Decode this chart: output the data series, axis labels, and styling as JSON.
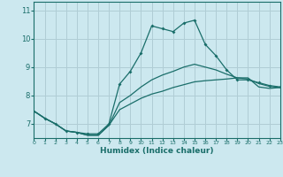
{
  "xlabel": "Humidex (Indice chaleur)",
  "xlim": [
    0,
    23
  ],
  "ylim": [
    6.5,
    11.3
  ],
  "bg_color": "#cce8ef",
  "grid_color": "#b0cdd5",
  "line_color": "#1a6e6a",
  "xticks": [
    0,
    1,
    2,
    3,
    4,
    5,
    6,
    7,
    8,
    9,
    10,
    11,
    12,
    13,
    14,
    15,
    16,
    17,
    18,
    19,
    20,
    21,
    22,
    23
  ],
  "yticks": [
    7,
    8,
    9,
    10,
    11
  ],
  "line_max_x": [
    0,
    1,
    2,
    3,
    4,
    5,
    6,
    7,
    8,
    9,
    10,
    11,
    12,
    13,
    14,
    15,
    16,
    17,
    18,
    19,
    20,
    21,
    22,
    23
  ],
  "line_max_y": [
    7.45,
    7.2,
    7.0,
    6.75,
    6.7,
    6.65,
    6.65,
    7.0,
    8.4,
    8.85,
    9.5,
    10.45,
    10.35,
    10.25,
    10.55,
    10.65,
    9.8,
    9.4,
    8.9,
    8.55,
    8.55,
    8.45,
    8.35,
    8.3
  ],
  "line_min_x": [
    0,
    1,
    2,
    3,
    4,
    5,
    6,
    7,
    8,
    9,
    10,
    11,
    12,
    13,
    14,
    15,
    16,
    17,
    18,
    19,
    20,
    21,
    22,
    23
  ],
  "line_min_y": [
    7.45,
    7.2,
    7.0,
    6.75,
    6.7,
    6.6,
    6.6,
    6.95,
    7.5,
    7.7,
    7.9,
    8.05,
    8.15,
    8.28,
    8.38,
    8.48,
    8.52,
    8.55,
    8.58,
    8.62,
    8.62,
    8.3,
    8.25,
    8.28
  ],
  "line_mean_x": [
    0,
    1,
    2,
    3,
    4,
    5,
    6,
    7,
    8,
    9,
    10,
    11,
    12,
    13,
    14,
    15,
    16,
    17,
    18,
    19,
    20,
    21,
    22,
    23
  ],
  "line_mean_y": [
    7.45,
    7.2,
    7.0,
    6.75,
    6.7,
    6.6,
    6.6,
    6.95,
    7.75,
    8.0,
    8.3,
    8.55,
    8.72,
    8.85,
    9.0,
    9.1,
    9.0,
    8.9,
    8.75,
    8.62,
    8.58,
    8.42,
    8.32,
    8.28
  ]
}
